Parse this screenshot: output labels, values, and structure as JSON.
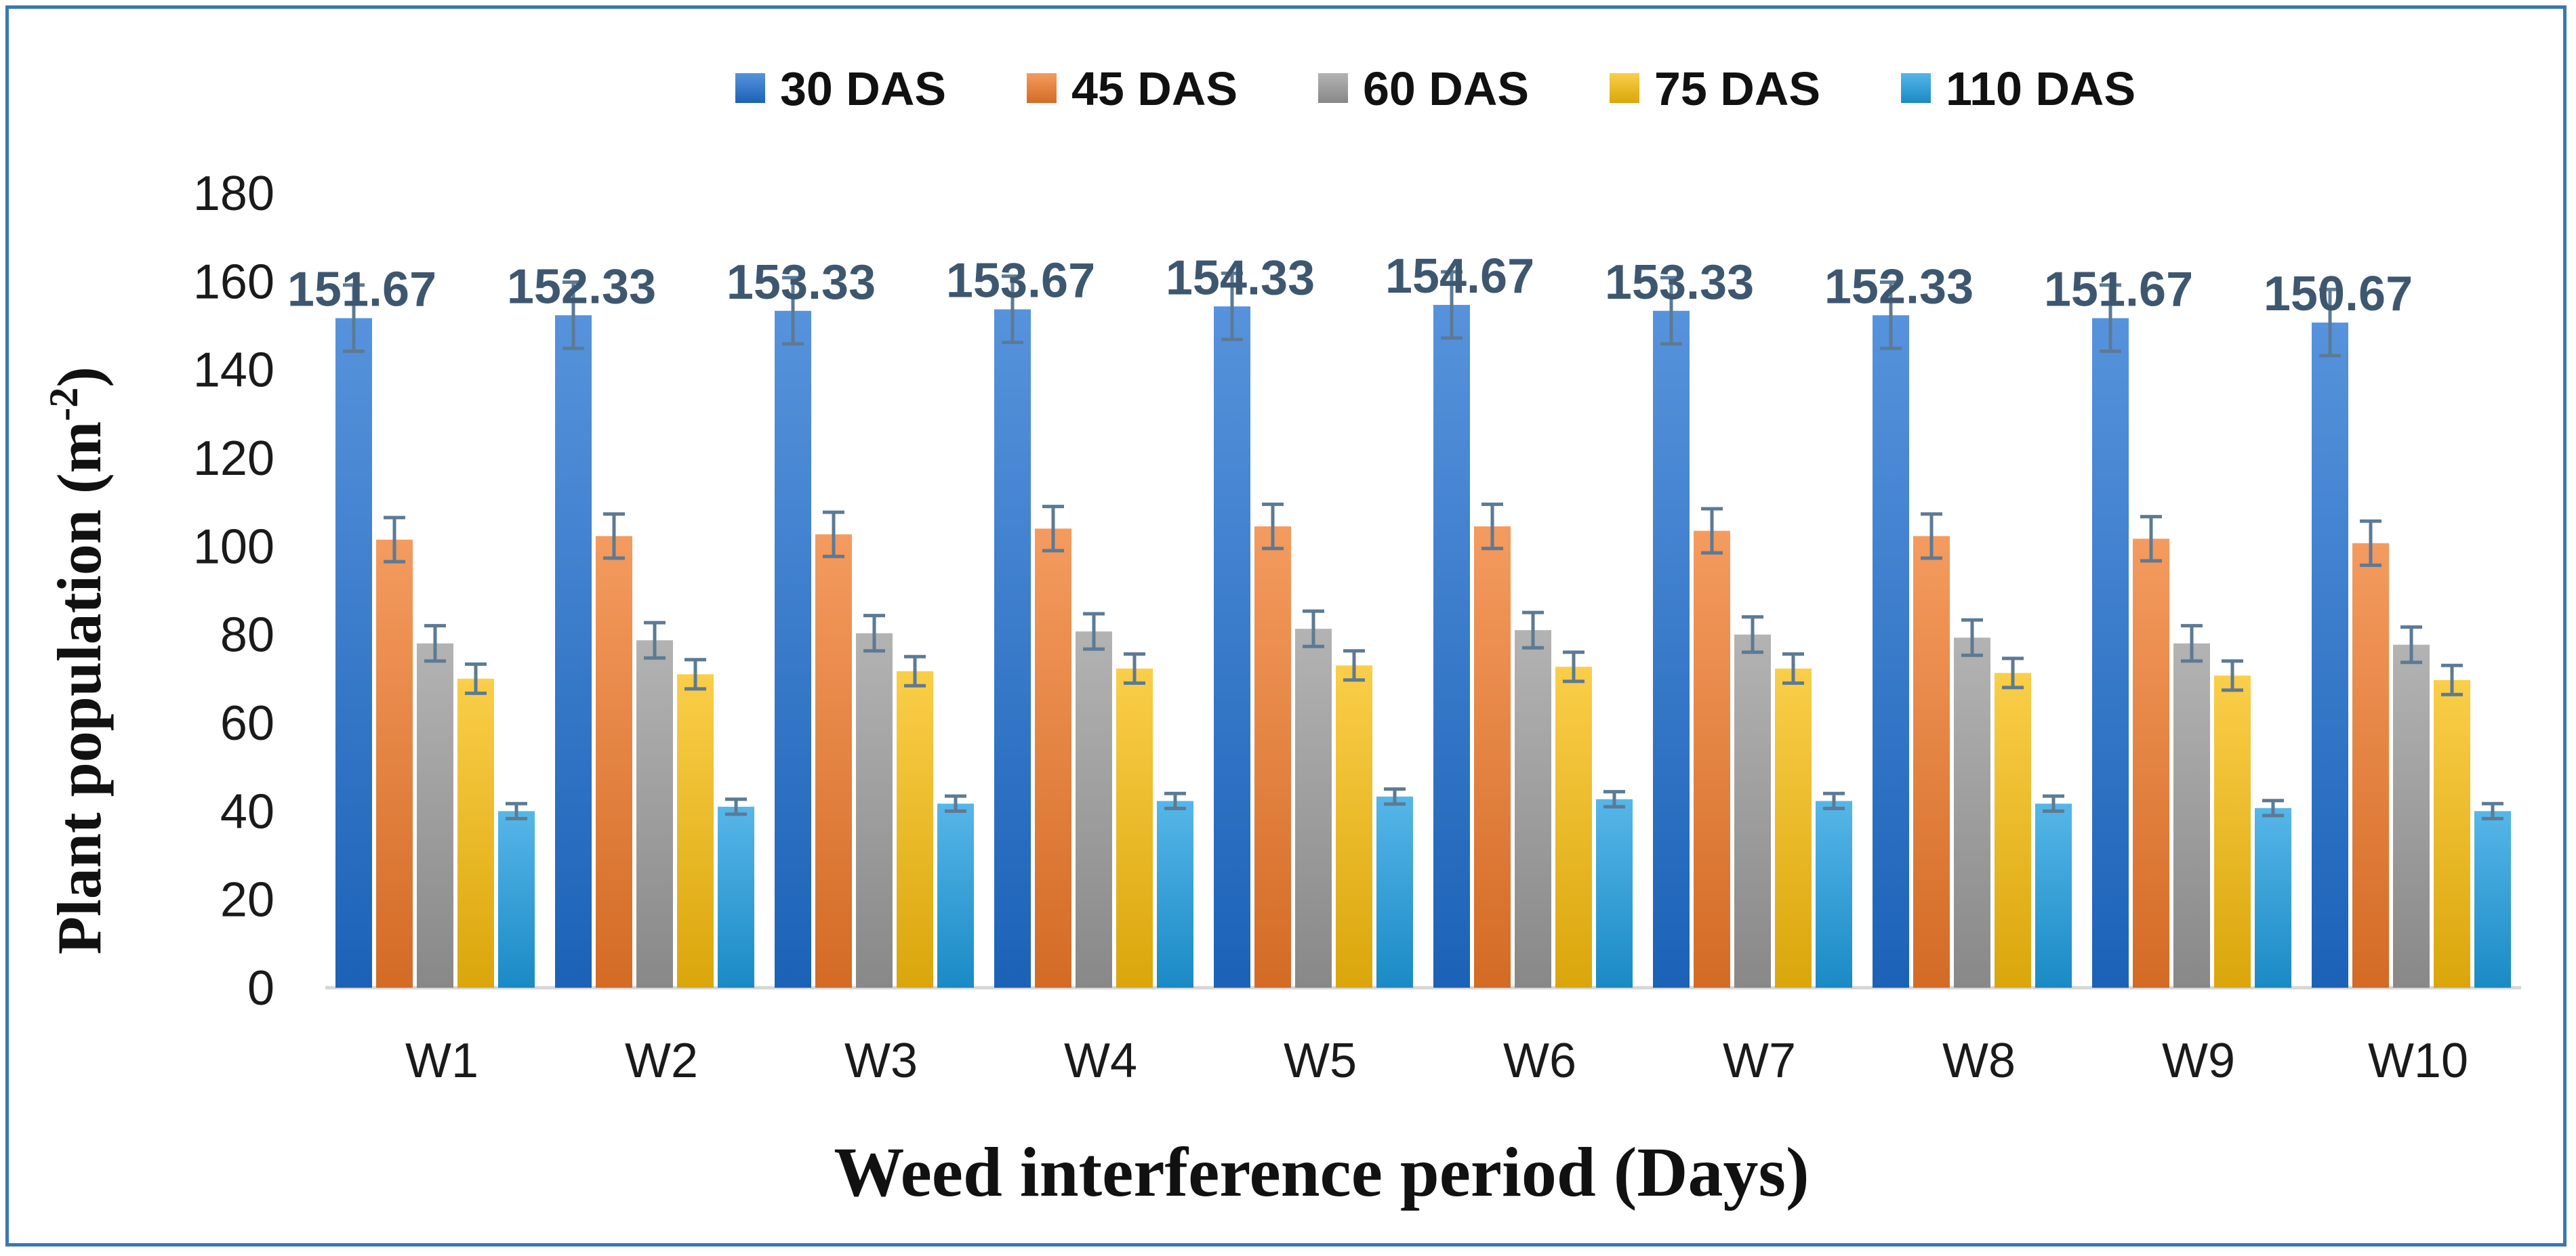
{
  "chart_data": {
    "type": "bar",
    "title": "",
    "xlabel": "Weed interference period (Days)",
    "ylabel": "Plant population (m",
    "ylabel_sup": "-2",
    "ylabel_close": ")",
    "ylim": [
      0,
      180
    ],
    "yticks": [
      0,
      20,
      40,
      60,
      80,
      100,
      120,
      140,
      160,
      180
    ],
    "grid": false,
    "legend_position": "top",
    "categories": [
      "W1",
      "W2",
      "W3",
      "W4",
      "W5",
      "W6",
      "W7",
      "W8",
      "W9",
      "W10"
    ],
    "series": [
      {
        "name": "30 DAS",
        "color": "#1f6fd0",
        "error": 7.5,
        "values": [
          151.67,
          152.33,
          153.33,
          153.67,
          154.33,
          154.67,
          153.33,
          152.33,
          151.67,
          150.67
        ],
        "labels": [
          "151.67",
          "152.33",
          "153.33",
          "153.67",
          "154.33",
          "154.67",
          "153.33",
          "152.33",
          "151.67",
          "150.67"
        ]
      },
      {
        "name": "45 DAS",
        "color": "#f07a2a",
        "error": 5,
        "values": [
          101.5,
          102.3,
          102.7,
          104,
          104.5,
          104.5,
          103.5,
          102.3,
          101.7,
          100.7
        ]
      },
      {
        "name": "60 DAS",
        "color": "#9a9a9a",
        "error": 4,
        "values": [
          78,
          78.7,
          80.3,
          80.7,
          81.3,
          81,
          80,
          79.3,
          78,
          77.7
        ]
      },
      {
        "name": "75 DAS",
        "color": "#f8bd0c",
        "error": 3.3,
        "values": [
          70,
          71,
          71.7,
          72.3,
          73,
          72.7,
          72.3,
          71.3,
          70.7,
          69.7
        ]
      },
      {
        "name": "110 DAS",
        "color": "#1e9de0",
        "error": 1.7,
        "values": [
          40,
          41,
          41.7,
          42.3,
          43.3,
          42.7,
          42.3,
          41.7,
          40.7,
          40
        ]
      }
    ]
  }
}
